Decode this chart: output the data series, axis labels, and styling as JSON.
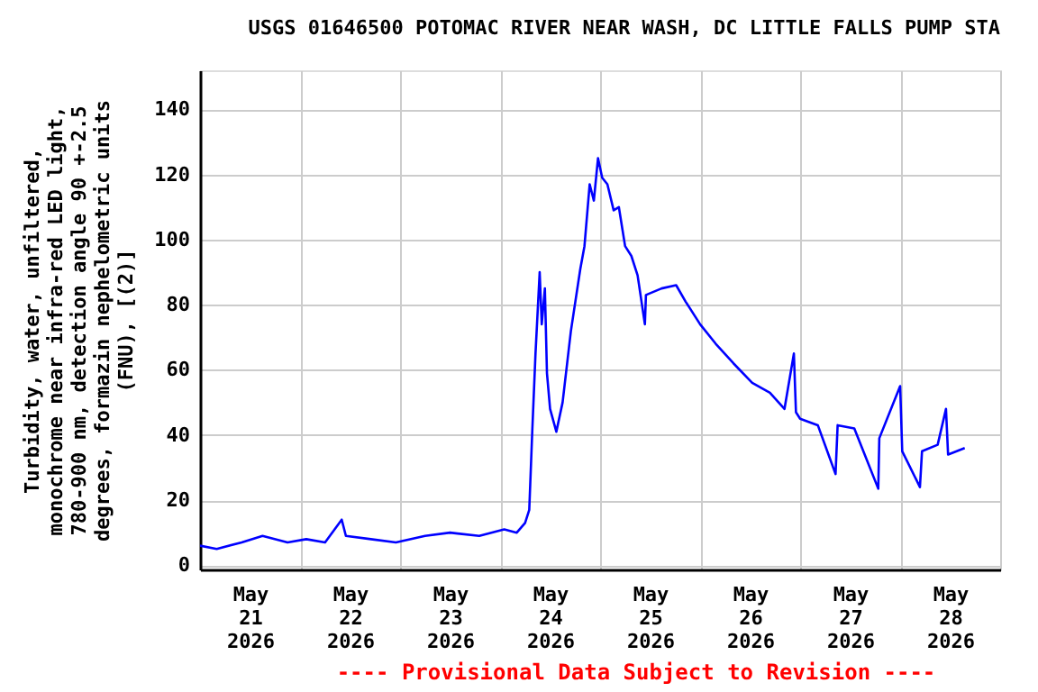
{
  "chart_data": {
    "type": "line",
    "title": "USGS 01646500 POTOMAC RIVER NEAR WASH, DC LITTLE FALLS PUMP STA",
    "ylabel": "Turbidity, water, unfiltered,\nmonochrome near infra-red LED light,\n780-900 nm, detection angle 90 +-2.5\ndegrees, formazin nephelometric units\n(FNU), [(2)]",
    "annotations": [
      "---- Provisional Data Subject to Revision ----"
    ],
    "x": [
      "2026-05-21T00:00",
      "2026-05-21T04:00",
      "2026-05-21T10:00",
      "2026-05-21T15:00",
      "2026-05-21T21:00",
      "2026-05-22T01:30",
      "2026-05-22T06:00",
      "2026-05-22T10:00",
      "2026-05-22T11:00",
      "2026-05-22T17:00",
      "2026-05-22T23:00",
      "2026-05-23T06:00",
      "2026-05-23T12:00",
      "2026-05-23T19:00",
      "2026-05-24T01:00",
      "2026-05-24T04:00",
      "2026-05-24T06:00",
      "2026-05-24T07:00",
      "2026-05-24T07:45",
      "2026-05-24T08:30",
      "2026-05-24T09:30",
      "2026-05-24T10:00",
      "2026-05-24T10:45",
      "2026-05-24T11:15",
      "2026-05-24T12:00",
      "2026-05-24T13:30",
      "2026-05-24T15:00",
      "2026-05-24T17:00",
      "2026-05-24T19:15",
      "2026-05-24T20:15",
      "2026-05-24T21:30",
      "2026-05-24T22:30",
      "2026-05-24T23:30",
      "2026-05-25T00:30",
      "2026-05-25T01:45",
      "2026-05-25T03:15",
      "2026-05-25T04:30",
      "2026-05-25T06:00",
      "2026-05-25T07:30",
      "2026-05-25T09:00",
      "2026-05-25T10:45",
      "2026-05-25T11:00",
      "2026-05-25T14:45",
      "2026-05-25T18:15",
      "2026-05-25T20:30",
      "2026-05-26T00:00",
      "2026-05-26T03:45",
      "2026-05-26T08:00",
      "2026-05-26T12:30",
      "2026-05-26T16:45",
      "2026-05-26T20:15",
      "2026-05-26T22:30",
      "2026-05-26T23:00",
      "2026-05-27T00:00",
      "2026-05-27T04:15",
      "2026-05-27T08:30",
      "2026-05-27T09:00",
      "2026-05-27T13:00",
      "2026-05-27T18:45",
      "2026-05-27T19:00",
      "2026-05-28T00:00",
      "2026-05-28T00:30",
      "2026-05-28T04:45",
      "2026-05-28T05:15",
      "2026-05-28T09:00",
      "2026-05-28T11:00",
      "2026-05-28T11:30",
      "2026-05-28T15:30"
    ],
    "series": [
      {
        "color": "#0000ff",
        "values": [
          6,
          5,
          7,
          9,
          7,
          8,
          7,
          14,
          9,
          8,
          7,
          9,
          10,
          9,
          11,
          10,
          13,
          17,
          42,
          65,
          90,
          74,
          85,
          59,
          48,
          41,
          50,
          72,
          91,
          98,
          117,
          112,
          125,
          119,
          117,
          109,
          110,
          98,
          95,
          89,
          74,
          83,
          85,
          86,
          81,
          74,
          68,
          62,
          56,
          53,
          48,
          65,
          47,
          45,
          43,
          28,
          43,
          42,
          23.5,
          39,
          55,
          35,
          24,
          35,
          37,
          48,
          34,
          36
        ]
      }
    ],
    "xlim": [
      "2026-05-21T00:00",
      "2026-05-29T00:00"
    ],
    "xticks": [
      {
        "value": "2026-05-21T00:00",
        "label": null
      },
      {
        "value": "2026-05-21T12:00",
        "label": "May\n21\n2026"
      },
      {
        "value": "2026-05-22T00:00",
        "label": null
      },
      {
        "value": "2026-05-22T12:00",
        "label": "May\n22\n2026"
      },
      {
        "value": "2026-05-23T00:00",
        "label": null
      },
      {
        "value": "2026-05-23T12:00",
        "label": "May\n23\n2026"
      },
      {
        "value": "2026-05-24T00:00",
        "label": null
      },
      {
        "value": "2026-05-24T12:00",
        "label": "May\n24\n2026"
      },
      {
        "value": "2026-05-25T00:00",
        "label": null
      },
      {
        "value": "2026-05-25T12:00",
        "label": "May\n25\n2026"
      },
      {
        "value": "2026-05-26T00:00",
        "label": null
      },
      {
        "value": "2026-05-26T12:00",
        "label": "May\n26\n2026"
      },
      {
        "value": "2026-05-27T00:00",
        "label": null
      },
      {
        "value": "2026-05-27T12:00",
        "label": "May\n27\n2026"
      },
      {
        "value": "2026-05-28T00:00",
        "label": null
      },
      {
        "value": "2026-05-28T12:00",
        "label": "May\n28\n2026"
      },
      {
        "value": "2026-05-29T00:00",
        "label": null
      }
    ],
    "ylim": [
      -1.3,
      152
    ],
    "yticks": [
      0,
      20,
      40,
      60,
      80,
      100,
      120,
      140
    ],
    "grid": true,
    "line_style": "solid"
  }
}
